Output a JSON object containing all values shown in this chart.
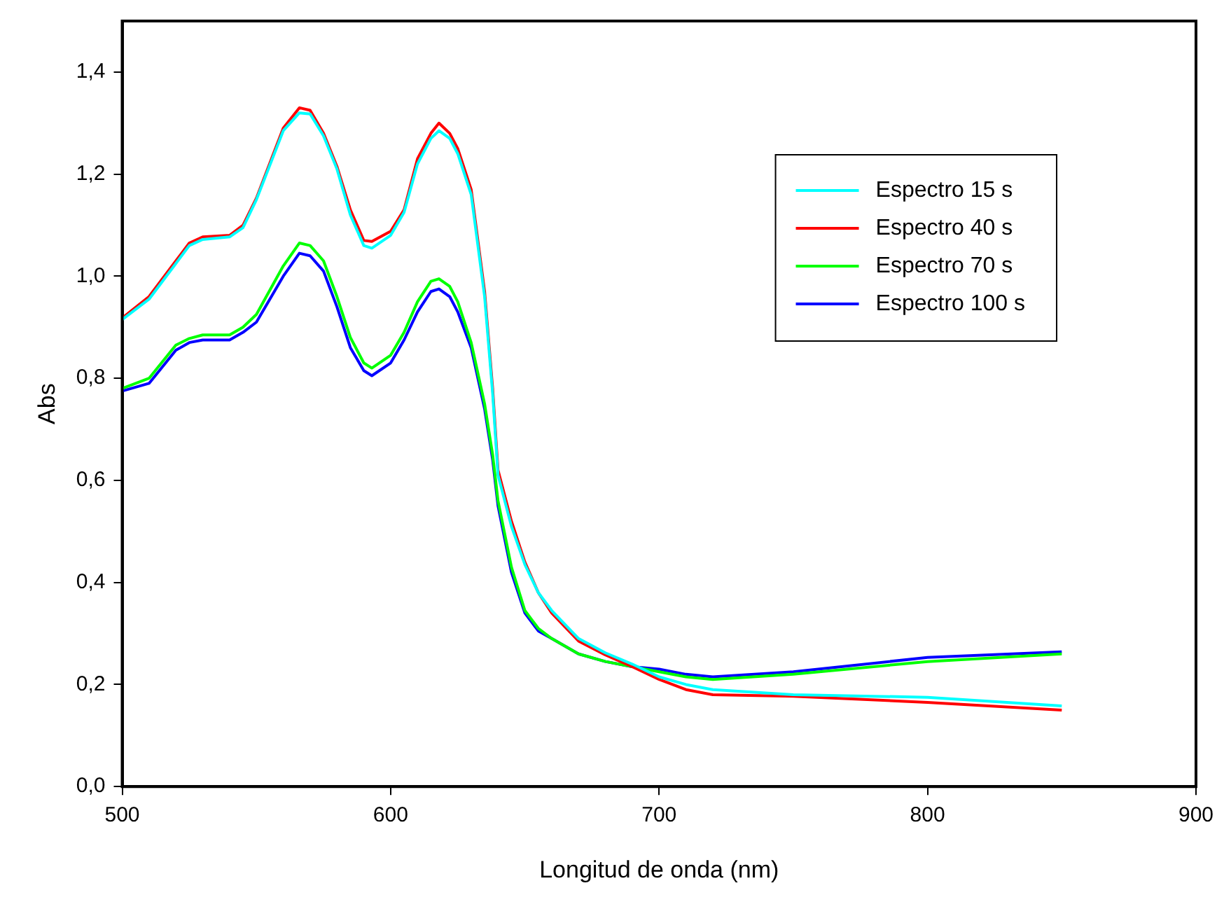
{
  "chart_data": {
    "type": "line",
    "xlabel": "Longitud de onda (nm)",
    "ylabel": "Abs",
    "x": [
      500,
      510,
      520,
      525,
      530,
      540,
      545,
      550,
      560,
      566,
      570,
      575,
      580,
      585,
      590,
      593,
      600,
      605,
      610,
      615,
      618,
      622,
      625,
      630,
      635,
      638,
      640,
      645,
      650,
      655,
      660,
      670,
      680,
      690,
      700,
      710,
      720,
      750,
      800,
      850
    ],
    "series": [
      {
        "name": "Espectro 15 s",
        "color": "#00ffff",
        "values": [
          0.915,
          0.955,
          1.025,
          1.06,
          1.072,
          1.077,
          1.095,
          1.15,
          1.285,
          1.32,
          1.318,
          1.275,
          1.21,
          1.12,
          1.06,
          1.055,
          1.08,
          1.125,
          1.22,
          1.27,
          1.285,
          1.27,
          1.24,
          1.16,
          0.96,
          0.77,
          0.61,
          0.51,
          0.435,
          0.38,
          0.345,
          0.29,
          0.262,
          0.24,
          0.215,
          0.2,
          0.19,
          0.18,
          0.175,
          0.158
        ]
      },
      {
        "name": "Espectro 40 s",
        "color": "#ff0000",
        "values": [
          0.918,
          0.96,
          1.03,
          1.065,
          1.077,
          1.08,
          1.1,
          1.153,
          1.29,
          1.33,
          1.325,
          1.28,
          1.215,
          1.13,
          1.07,
          1.068,
          1.088,
          1.13,
          1.23,
          1.28,
          1.3,
          1.28,
          1.25,
          1.17,
          0.97,
          0.78,
          0.62,
          0.52,
          0.44,
          0.38,
          0.34,
          0.285,
          0.258,
          0.235,
          0.21,
          0.19,
          0.18,
          0.177,
          0.165,
          0.15
        ]
      },
      {
        "name": "Espectro 70 s",
        "color": "#00ff00",
        "values": [
          0.78,
          0.8,
          0.865,
          0.878,
          0.885,
          0.885,
          0.9,
          0.925,
          1.02,
          1.065,
          1.06,
          1.03,
          0.96,
          0.88,
          0.83,
          0.82,
          0.845,
          0.89,
          0.95,
          0.99,
          0.995,
          0.98,
          0.95,
          0.87,
          0.75,
          0.65,
          0.56,
          0.43,
          0.345,
          0.31,
          0.29,
          0.26,
          0.245,
          0.235,
          0.225,
          0.215,
          0.21,
          0.22,
          0.245,
          0.26
        ]
      },
      {
        "name": "Espectro 100 s",
        "color": "#0000ff",
        "values": [
          0.775,
          0.79,
          0.855,
          0.87,
          0.875,
          0.875,
          0.89,
          0.91,
          1.0,
          1.045,
          1.04,
          1.01,
          0.94,
          0.86,
          0.815,
          0.805,
          0.83,
          0.875,
          0.93,
          0.97,
          0.975,
          0.96,
          0.93,
          0.86,
          0.74,
          0.64,
          0.55,
          0.42,
          0.34,
          0.305,
          0.29,
          0.26,
          0.245,
          0.235,
          0.23,
          0.22,
          0.215,
          0.225,
          0.253,
          0.264
        ]
      }
    ],
    "xlim": [
      500,
      900
    ],
    "xticks": [
      500,
      600,
      700,
      800,
      900
    ],
    "ylim": [
      0,
      1.5
    ],
    "yticks": [
      {
        "value": 0,
        "label": "0,0"
      },
      {
        "value": 0.2,
        "label": "0,2"
      },
      {
        "value": 0.4,
        "label": "0,4"
      },
      {
        "value": 0.6,
        "label": "0,6"
      },
      {
        "value": 0.8,
        "label": "0,8"
      },
      {
        "value": 1,
        "label": "1,0"
      },
      {
        "value": 1.2,
        "label": "1,2"
      },
      {
        "value": 1.4,
        "label": "1,4"
      }
    ],
    "grid": false,
    "legend": "top right",
    "marker": "none",
    "line_style": "solid"
  }
}
